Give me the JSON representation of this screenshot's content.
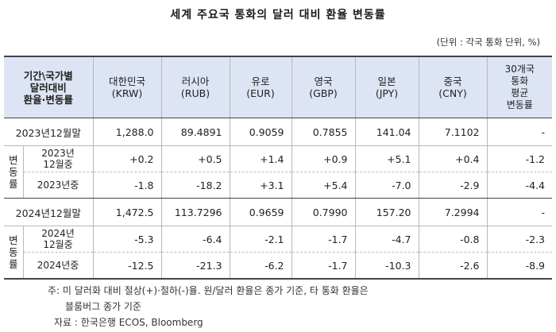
{
  "title": "세계 주요국 통화의 달러 대비 환율 변동률",
  "unit": "(단위 : 각국 통화 단위, %)",
  "header": {
    "corner_line1": "기간\\국가별",
    "corner_line2": "달러대비",
    "corner_line3": "환율·변동률",
    "currencies": [
      {
        "country": "대한민국",
        "code": "(KRW)"
      },
      {
        "country": "러시아",
        "code": "(RUB)"
      },
      {
        "country": "유로",
        "code": "(EUR)"
      },
      {
        "country": "영국",
        "code": "(GBP)"
      },
      {
        "country": "일본",
        "code": "(JPY)"
      },
      {
        "country": "중국",
        "code": "(CNY)"
      }
    ],
    "avg_line1": "30개국",
    "avg_line2": "통화",
    "avg_line3": "평균",
    "avg_line4": "변동률"
  },
  "blocks": [
    {
      "level_label": "2023년12월말",
      "level_values": [
        "1,288.0",
        "89.4891",
        "0.9059",
        "0.7855",
        "141.04",
        "7.1102",
        "-"
      ],
      "change_label_v1": "변동",
      "change_label_v2": "률",
      "rows": [
        {
          "label_line1": "2023년",
          "label_line2": "12월중",
          "values": [
            "+0.2",
            "+0.5",
            "+1.4",
            "+0.9",
            "+5.1",
            "+0.4",
            "-1.2"
          ]
        },
        {
          "label_line1": "2023년중",
          "label_line2": "",
          "values": [
            "-1.8",
            "-18.2",
            "+3.1",
            "+5.4",
            "-7.0",
            "-2.9",
            "-4.4"
          ]
        }
      ]
    },
    {
      "level_label": "2024년12월말",
      "level_values": [
        "1,472.5",
        "113.7296",
        "0.9659",
        "0.7990",
        "157.20",
        "7.2994",
        "-"
      ],
      "change_label_v1": "변동",
      "change_label_v2": "률",
      "rows": [
        {
          "label_line1": "2024년",
          "label_line2": "12월중",
          "values": [
            "-5.3",
            "-6.4",
            "-2.1",
            "-1.7",
            "-4.7",
            "-0.8",
            "-2.3"
          ]
        },
        {
          "label_line1": "2024년중",
          "label_line2": "",
          "values": [
            "-12.5",
            "-21.3",
            "-6.2",
            "-1.7",
            "-10.3",
            "-2.6",
            "-8.9"
          ]
        }
      ]
    }
  ],
  "notes": {
    "note1": "주: 미 달러화 대비 절상(+)·절하(-)율. 원/달러 환율은 종가 기준, 타 통화 환율은",
    "note1_cont": "블룸버그 종가 기준",
    "source": "자료 : 한국은행 ECOS, Bloomberg"
  }
}
